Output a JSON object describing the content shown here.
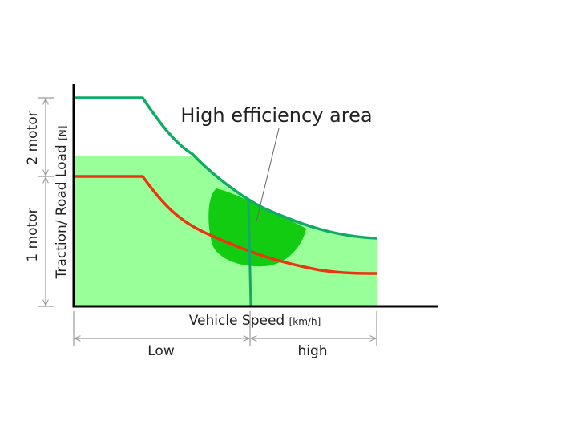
{
  "annotation": "High efficiency area",
  "x_axis": {
    "label": "Vehicle Speed",
    "unit": "[km/h]",
    "ranges": [
      "Low",
      "high"
    ]
  },
  "y_axis": {
    "label": "Traction/ Road Load",
    "unit": "[N]",
    "ranges": [
      "2 motor",
      "1 motor"
    ]
  }
}
